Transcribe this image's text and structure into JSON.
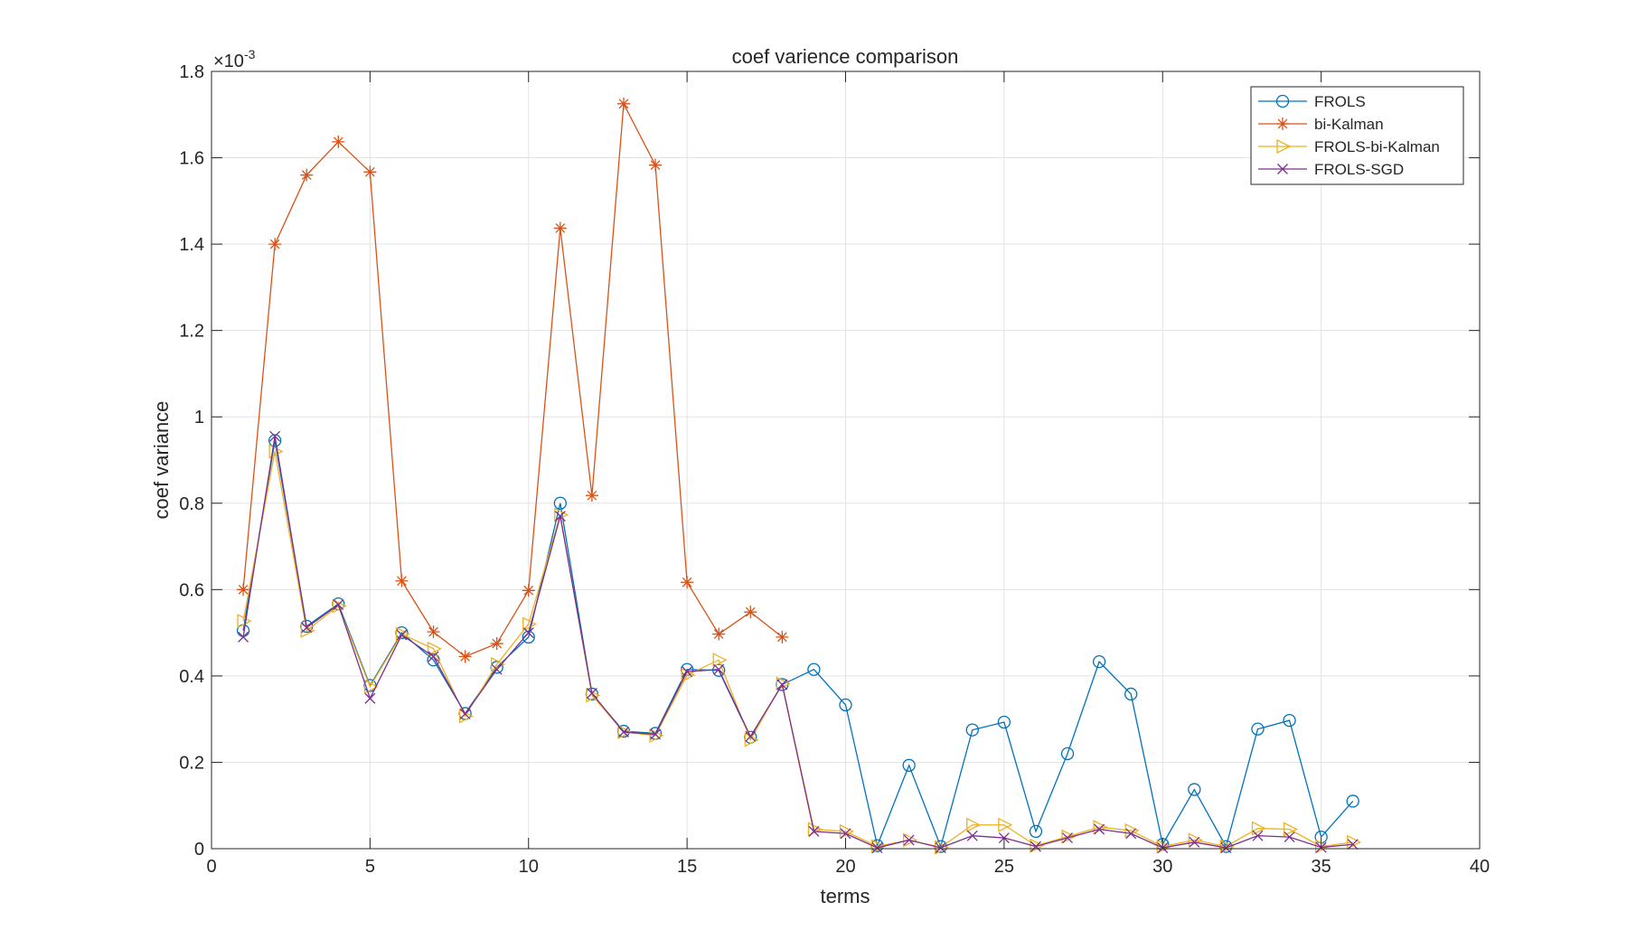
{
  "chart_data": {
    "type": "line",
    "title": "coef varience comparison",
    "xlabel": "terms",
    "ylabel": "coef variance",
    "xlim": [
      0,
      40
    ],
    "ylim": [
      0,
      0.0018
    ],
    "xticks": [
      "0",
      "5",
      "10",
      "15",
      "20",
      "25",
      "30",
      "35",
      "40"
    ],
    "xtick_values": [
      0,
      5,
      10,
      15,
      20,
      25,
      30,
      35,
      40
    ],
    "yticks": [
      "0",
      "0.2",
      "0.4",
      "0.6",
      "0.8",
      "1",
      "1.2",
      "1.4",
      "1.6",
      "1.8"
    ],
    "ytick_values": [
      0,
      0.2,
      0.4,
      0.6,
      0.8,
      1.0,
      1.2,
      1.4,
      1.6,
      1.8
    ],
    "y_multiplier_base": "×10",
    "y_multiplier_exp": "-3",
    "grid": true,
    "legend_position": "top-right",
    "series": [
      {
        "name": "FROLS",
        "color": "#0072BD",
        "marker": "circle",
        "x": [
          1,
          2,
          3,
          4,
          5,
          6,
          7,
          8,
          9,
          10,
          11,
          12,
          13,
          14,
          15,
          16,
          17,
          18,
          19,
          20,
          21,
          22,
          23,
          24,
          25,
          26,
          27,
          28,
          29,
          30,
          31,
          32,
          33,
          34,
          35,
          36
        ],
        "values": [
          0.505,
          0.945,
          0.515,
          0.567,
          0.378,
          0.5,
          0.437,
          0.313,
          0.42,
          0.49,
          0.8,
          0.358,
          0.272,
          0.267,
          0.415,
          0.413,
          0.258,
          0.38,
          0.415,
          0.333,
          0.007,
          0.193,
          0.005,
          0.275,
          0.293,
          0.04,
          0.22,
          0.433,
          0.358,
          0.01,
          0.137,
          0.005,
          0.277,
          0.297,
          0.027,
          0.11
        ]
      },
      {
        "name": "bi-Kalman",
        "color": "#D95319",
        "marker": "asterisk",
        "x": [
          1,
          2,
          3,
          4,
          5,
          6,
          7,
          8,
          9,
          10,
          11,
          12,
          13,
          14,
          15,
          16,
          17,
          18
        ],
        "values": [
          0.6,
          1.4,
          1.56,
          1.637,
          1.567,
          0.62,
          0.502,
          0.445,
          0.475,
          0.598,
          1.437,
          0.818,
          1.725,
          1.583,
          0.617,
          0.497,
          0.548,
          0.49
        ]
      },
      {
        "name": "FROLS-bi-Kalman",
        "color": "#EDB120",
        "marker": "triangle-right",
        "x": [
          1,
          2,
          3,
          4,
          5,
          6,
          7,
          8,
          9,
          10,
          11,
          12,
          13,
          14,
          15,
          16,
          17,
          18,
          19,
          20,
          21,
          22,
          23,
          24,
          25,
          26,
          27,
          28,
          29,
          30,
          31,
          32,
          33,
          34,
          35,
          36
        ],
        "values": [
          0.527,
          0.92,
          0.505,
          0.562,
          0.375,
          0.497,
          0.463,
          0.307,
          0.427,
          0.52,
          0.773,
          0.355,
          0.27,
          0.262,
          0.402,
          0.437,
          0.252,
          0.382,
          0.045,
          0.04,
          0.005,
          0.02,
          0.003,
          0.055,
          0.055,
          0.007,
          0.028,
          0.05,
          0.042,
          0.005,
          0.02,
          0.005,
          0.047,
          0.045,
          0.005,
          0.015
        ]
      },
      {
        "name": "FROLS-SGD",
        "color": "#7E2F8E",
        "marker": "x",
        "x": [
          1,
          2,
          3,
          4,
          5,
          6,
          7,
          8,
          9,
          10,
          11,
          12,
          13,
          14,
          15,
          16,
          17,
          18,
          19,
          20,
          21,
          22,
          23,
          24,
          25,
          26,
          27,
          28,
          29,
          30,
          31,
          32,
          33,
          34,
          35,
          36
        ],
        "values": [
          0.49,
          0.955,
          0.512,
          0.565,
          0.348,
          0.495,
          0.445,
          0.312,
          0.415,
          0.5,
          0.77,
          0.36,
          0.27,
          0.265,
          0.41,
          0.415,
          0.26,
          0.38,
          0.04,
          0.035,
          0.002,
          0.02,
          0.002,
          0.03,
          0.025,
          0.005,
          0.025,
          0.045,
          0.035,
          0.002,
          0.015,
          0.002,
          0.03,
          0.027,
          0.003,
          0.01
        ]
      }
    ]
  }
}
